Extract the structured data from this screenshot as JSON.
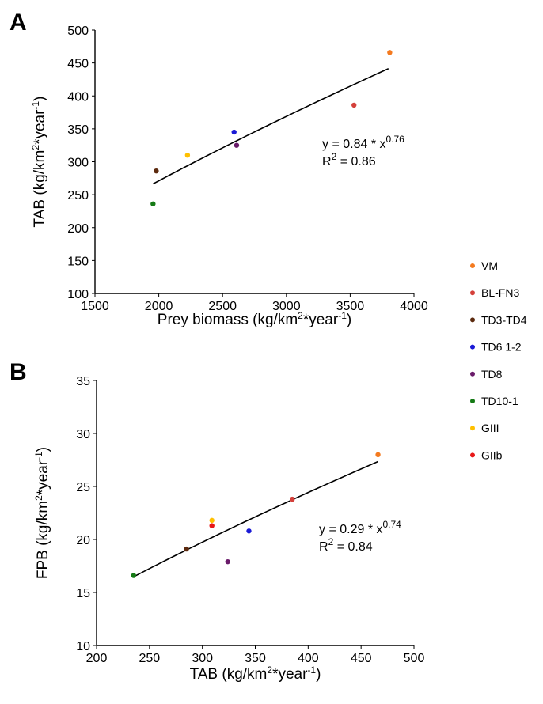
{
  "series_colors": {
    "VM": "#f47a1f",
    "BL-FN3": "#d4403a",
    "TD3-TD4": "#5c2a0e",
    "TD6 1-2": "#1a1ad6",
    "TD8": "#6a1b6a",
    "TD10-1": "#157a15",
    "GIII": "#ffc000",
    "GIIb": "#e81818"
  },
  "legend": [
    "VM",
    "BL-FN3",
    "TD3-TD4",
    "TD6 1-2",
    "TD8",
    "TD10-1",
    "GIII",
    "GIIb"
  ],
  "chart_data": [
    {
      "type": "scatter",
      "panel": "A",
      "xlabel": "Prey biomass (kg/km²*year⁻¹)",
      "xlabel_parts": [
        "Prey biomass (kg/km",
        "2",
        "*year",
        "-1",
        ")"
      ],
      "ylabel": "TAB (kg/km²*year⁻¹)",
      "ylabel_parts": [
        "TAB (kg/km",
        "2",
        "*year",
        "-1",
        ")"
      ],
      "xlim": [
        1500,
        4000
      ],
      "ylim": [
        100,
        500
      ],
      "xticks": [
        1500,
        2000,
        2500,
        3000,
        3500,
        4000
      ],
      "yticks": [
        100,
        150,
        200,
        250,
        300,
        350,
        400,
        450,
        500
      ],
      "grid": false,
      "points": [
        {
          "name": "VM",
          "x": 3810,
          "y": 466
        },
        {
          "name": "BL-FN3",
          "x": 3530,
          "y": 386
        },
        {
          "name": "TD3-TD4",
          "x": 1980,
          "y": 286
        },
        {
          "name": "TD6 1-2",
          "x": 2590,
          "y": 345
        },
        {
          "name": "TD8",
          "x": 2610,
          "y": 325
        },
        {
          "name": "TD10-1",
          "x": 1955,
          "y": 236
        },
        {
          "name": "GIII",
          "x": 2225,
          "y": 310
        }
      ],
      "trendline": {
        "a": 0.84,
        "b": 0.76,
        "x_from": 1955,
        "x_to": 3800
      },
      "equation": {
        "line1_pre": "y = 0.84 * x",
        "line1_sup": "0.76",
        "r_label": "R",
        "r_sup": "2",
        "r_value": " = 0.86"
      }
    },
    {
      "type": "scatter",
      "panel": "B",
      "xlabel": "TAB (kg/km²*year⁻¹)",
      "xlabel_parts": [
        "TAB (kg/km",
        "2",
        "*year",
        "-1",
        ")"
      ],
      "ylabel": "FPB (kg/km²*year⁻¹)",
      "ylabel_parts": [
        "FPB (kg/km",
        "2",
        "*year",
        "-1",
        ")"
      ],
      "xlim": [
        200,
        500
      ],
      "ylim": [
        10,
        35
      ],
      "xticks": [
        200,
        250,
        300,
        350,
        400,
        450,
        500
      ],
      "yticks": [
        10,
        15,
        20,
        25,
        30,
        35
      ],
      "grid": false,
      "points": [
        {
          "name": "VM",
          "x": 466,
          "y": 28.0
        },
        {
          "name": "BL-FN3",
          "x": 385,
          "y": 23.8
        },
        {
          "name": "TD3-TD4",
          "x": 285,
          "y": 19.1
        },
        {
          "name": "TD6 1-2",
          "x": 344,
          "y": 20.8
        },
        {
          "name": "TD8",
          "x": 324,
          "y": 17.9
        },
        {
          "name": "TD10-1",
          "x": 235,
          "y": 16.6
        },
        {
          "name": "GIII",
          "x": 309,
          "y": 21.8
        },
        {
          "name": "GIIb",
          "x": 309,
          "y": 21.3
        }
      ],
      "trendline": {
        "a": 0.29,
        "b": 0.74,
        "x_from": 235,
        "x_to": 466
      },
      "equation": {
        "line1_pre": "y = 0.29 * x",
        "line1_sup": "0.74",
        "r_label": "R",
        "r_sup": "2",
        "r_value": " = 0.84"
      }
    }
  ]
}
